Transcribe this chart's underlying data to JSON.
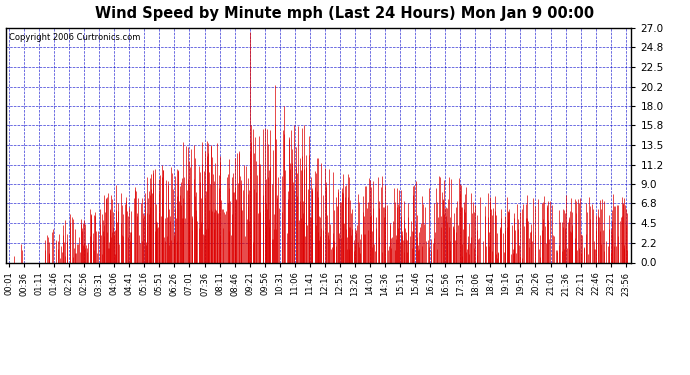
{
  "title": "Wind Speed by Minute mph (Last 24 Hours) Mon Jan 9 00:00",
  "copyright": "Copyright 2006 Curtronics.com",
  "yticks": [
    0.0,
    2.2,
    4.5,
    6.8,
    9.0,
    11.2,
    13.5,
    15.8,
    18.0,
    20.2,
    22.5,
    24.8,
    27.0
  ],
  "ylim": [
    0.0,
    27.0
  ],
  "bar_color": "#dd0000",
  "grid_color": "#0000cc",
  "background_color": "#ffffff",
  "plot_bg_color": "#ffffff",
  "num_minutes": 1440,
  "seed": 12345,
  "xtick_interval": 35,
  "xtick_start": 0
}
